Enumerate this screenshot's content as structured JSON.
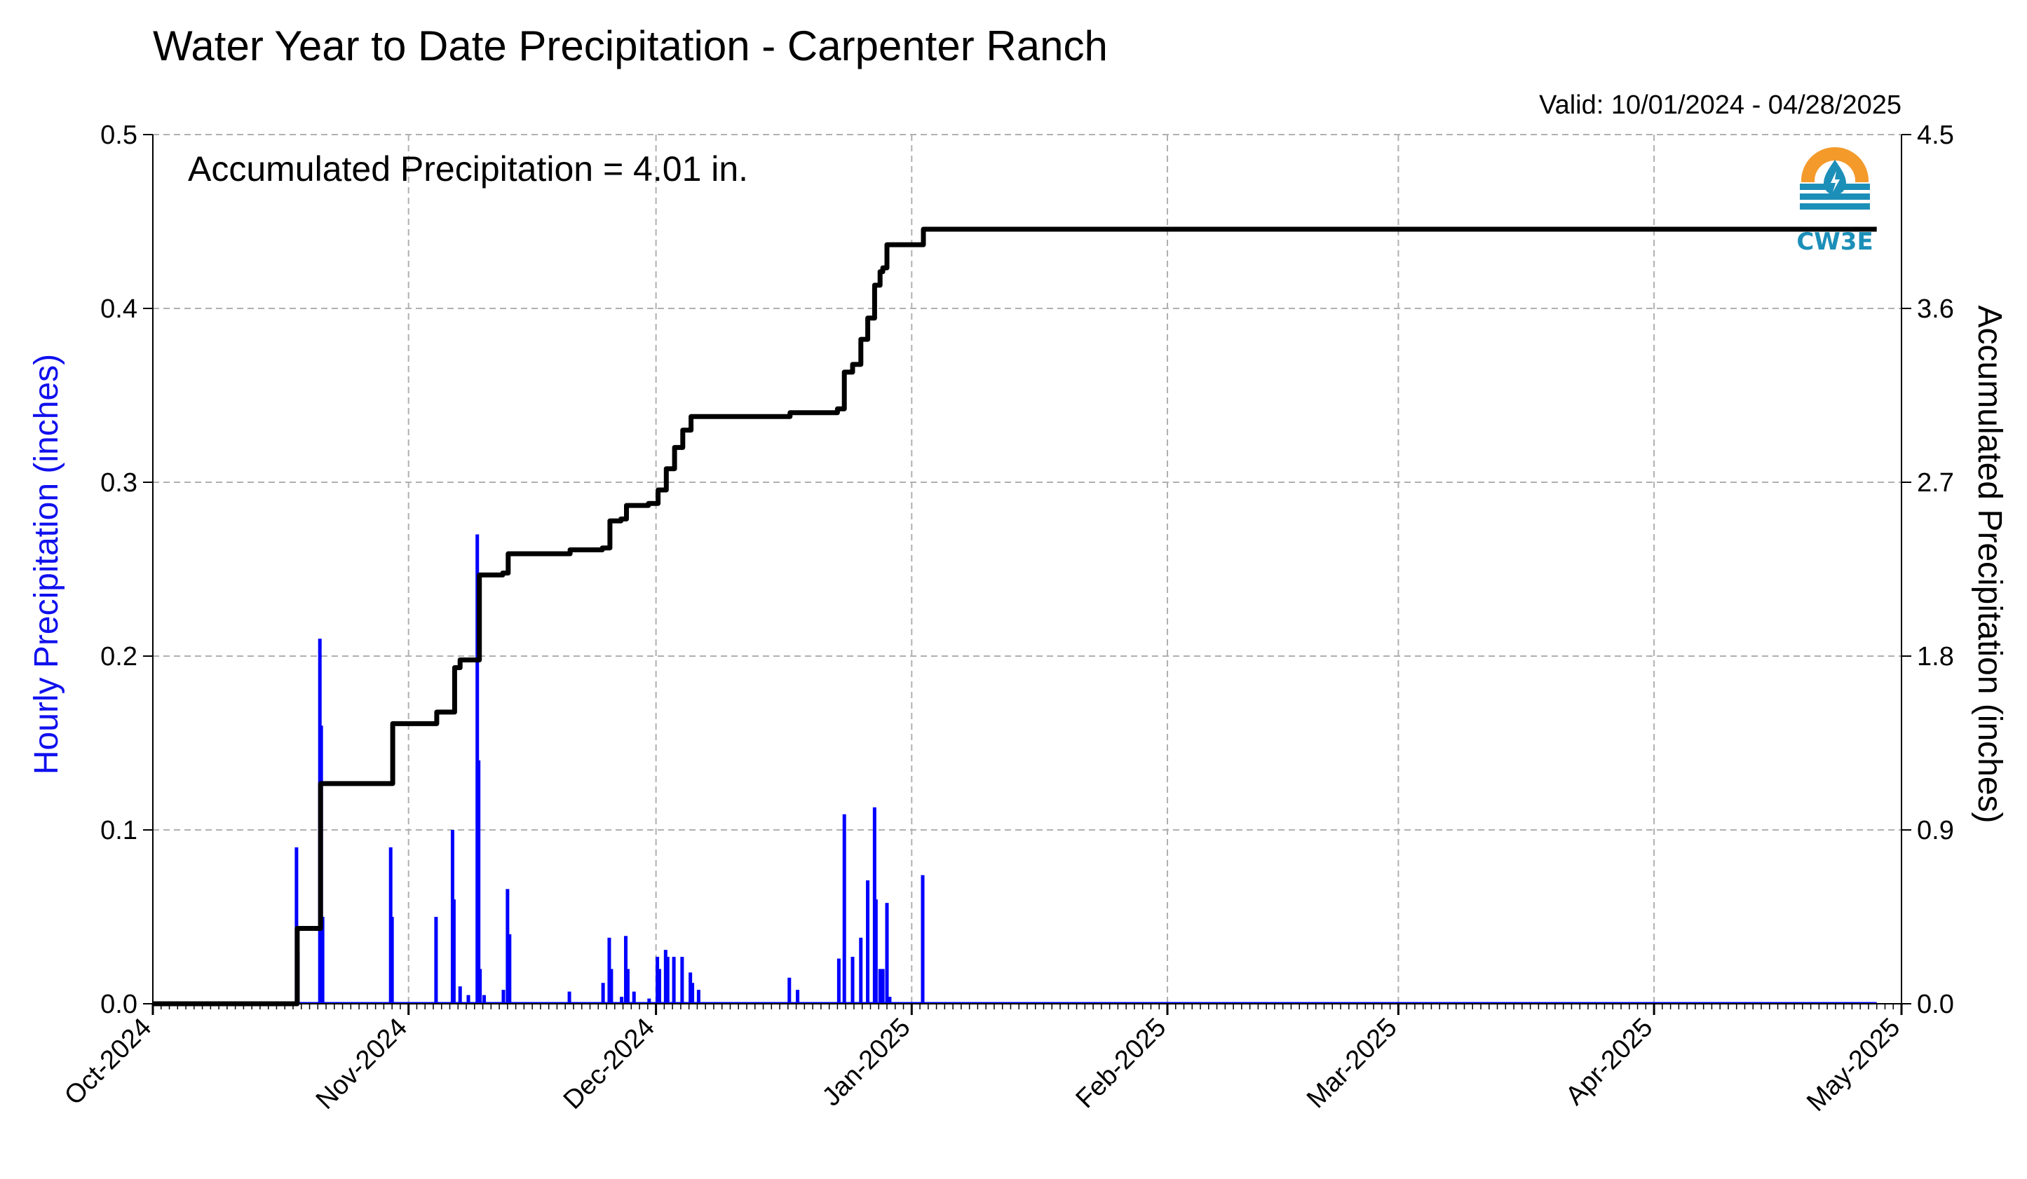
{
  "chart_data": {
    "type": "bar+line",
    "title": "Water Year to Date Precipitation - Carpenter Ranch",
    "valid_text": "Valid: 10/01/2024 - 04/28/2025",
    "annotation": "Accumulated Precipitation = 4.01 in.",
    "ylabel_left": "Hourly Precipitation (inches)",
    "ylabel_right": "Accumulated Precipitation (inches)",
    "ylim_left": [
      0,
      0.5
    ],
    "ylim_right": [
      0,
      4.5
    ],
    "xlim": [
      "2024-10-01",
      "2025-05-01"
    ],
    "yticks_left": [
      "0.0",
      "0.1",
      "0.2",
      "0.3",
      "0.4",
      "0.5"
    ],
    "yticks_left_values": [
      0,
      0.1,
      0.2,
      0.3,
      0.4,
      0.5
    ],
    "yticks_right": [
      "0.0",
      "0.9",
      "1.8",
      "2.7",
      "3.6",
      "4.5"
    ],
    "yticks_right_values": [
      0,
      0.9,
      1.8,
      2.7,
      3.6,
      4.5
    ],
    "xticks": [
      "Oct-2024",
      "Nov-2024",
      "Dec-2024",
      "Jan-2025",
      "Feb-2025",
      "Mar-2025",
      "Apr-2025",
      "May-2025"
    ],
    "xtick_dates": [
      "2024-10-01",
      "2024-11-01",
      "2024-12-01",
      "2025-01-01",
      "2025-02-01",
      "2025-03-01",
      "2025-04-01",
      "2025-05-01"
    ],
    "grid": true,
    "series": [
      {
        "name": "Hourly Precipitation",
        "type": "bar",
        "color": "#0000ff",
        "points": [
          [
            "2024-10-18 10:00",
            0.09
          ],
          [
            "2024-10-18 14:00",
            0.03
          ],
          [
            "2024-10-21 06:00",
            0.21
          ],
          [
            "2024-10-21 10:00",
            0.16
          ],
          [
            "2024-10-21 14:00",
            0.05
          ],
          [
            "2024-10-29 20:00",
            0.09
          ],
          [
            "2024-10-30 00:00",
            0.05
          ],
          [
            "2024-11-04 08:00",
            0.05
          ],
          [
            "2024-11-06 08:00",
            0.1
          ],
          [
            "2024-11-06 12:00",
            0.06
          ],
          [
            "2024-11-07 06:00",
            0.01
          ],
          [
            "2024-11-08 06:00",
            0.005
          ],
          [
            "2024-11-09 08:00",
            0.27
          ],
          [
            "2024-11-09 12:00",
            0.14
          ],
          [
            "2024-11-09 16:00",
            0.02
          ],
          [
            "2024-11-10 04:00",
            0.005
          ],
          [
            "2024-11-12 12:00",
            0.008
          ],
          [
            "2024-11-13 00:00",
            0.066
          ],
          [
            "2024-11-13 06:00",
            0.04
          ],
          [
            "2024-11-20 12:00",
            0.007
          ],
          [
            "2024-11-24 14:00",
            0.012
          ],
          [
            "2024-11-25 08:00",
            0.038
          ],
          [
            "2024-11-25 14:00",
            0.02
          ],
          [
            "2024-11-26 20:00",
            0.004
          ],
          [
            "2024-11-27 08:00",
            0.039
          ],
          [
            "2024-11-27 14:00",
            0.02
          ],
          [
            "2024-11-28 08:00",
            0.007
          ],
          [
            "2024-11-30 04:00",
            0.003
          ],
          [
            "2024-12-01 04:00",
            0.027
          ],
          [
            "2024-12-01 10:00",
            0.02
          ],
          [
            "2024-12-02 04:00",
            0.031
          ],
          [
            "2024-12-02 10:00",
            0.027
          ],
          [
            "2024-12-03 04:00",
            0.027
          ],
          [
            "2024-12-04 04:00",
            0.027
          ],
          [
            "2024-12-05 04:00",
            0.018
          ],
          [
            "2024-12-05 10:00",
            0.012
          ],
          [
            "2024-12-06 04:00",
            0.008
          ],
          [
            "2024-12-17 04:00",
            0.015
          ],
          [
            "2024-12-18 04:00",
            0.008
          ],
          [
            "2024-12-23 04:00",
            0.026
          ],
          [
            "2024-12-23 20:00",
            0.109
          ],
          [
            "2024-12-24 20:00",
            0.027
          ],
          [
            "2024-12-25 20:00",
            0.038
          ],
          [
            "2024-12-26 16:00",
            0.071
          ],
          [
            "2024-12-27 12:00",
            0.113
          ],
          [
            "2024-12-27 16:00",
            0.06
          ],
          [
            "2024-12-28 04:00",
            0.02
          ],
          [
            "2024-12-28 12:00",
            0.02
          ],
          [
            "2024-12-29 00:00",
            0.058
          ],
          [
            "2024-12-29 08:00",
            0.004
          ],
          [
            "2025-01-02 08:00",
            0.074
          ]
        ]
      },
      {
        "name": "Accumulated Precipitation",
        "type": "line",
        "color": "#000000",
        "points": [
          [
            "2024-10-01 00:00",
            0.0
          ],
          [
            "2024-10-18 08:00",
            0.0
          ],
          [
            "2024-10-18 12:00",
            0.39
          ],
          [
            "2024-10-21 04:00",
            0.39
          ],
          [
            "2024-10-21 08:00",
            1.14
          ],
          [
            "2024-10-29 18:00",
            1.14
          ],
          [
            "2024-10-30 02:00",
            1.45
          ],
          [
            "2024-11-04 06:00",
            1.45
          ],
          [
            "2024-11-04 10:00",
            1.51
          ],
          [
            "2024-11-06 06:00",
            1.51
          ],
          [
            "2024-11-06 14:00",
            1.74
          ],
          [
            "2024-11-07 06:00",
            1.78
          ],
          [
            "2024-11-09 06:00",
            1.78
          ],
          [
            "2024-11-09 14:00",
            2.22
          ],
          [
            "2024-11-12 10:00",
            2.23
          ],
          [
            "2024-11-13 02:00",
            2.33
          ],
          [
            "2024-11-20 06:00",
            2.33
          ],
          [
            "2024-11-20 14:00",
            2.35
          ],
          [
            "2024-11-24 12:00",
            2.36
          ],
          [
            "2024-11-25 10:00",
            2.5
          ],
          [
            "2024-11-26 18:00",
            2.51
          ],
          [
            "2024-11-27 10:00",
            2.58
          ],
          [
            "2024-11-30 02:00",
            2.59
          ],
          [
            "2024-12-01 06:00",
            2.66
          ],
          [
            "2024-12-02 06:00",
            2.77
          ],
          [
            "2024-12-03 06:00",
            2.88
          ],
          [
            "2024-12-04 06:00",
            2.97
          ],
          [
            "2024-12-05 06:00",
            3.04
          ],
          [
            "2024-12-13 00:00",
            3.04
          ],
          [
            "2024-12-17 06:00",
            3.06
          ],
          [
            "2024-12-23 00:00",
            3.08
          ],
          [
            "2024-12-23 20:00",
            3.27
          ],
          [
            "2024-12-24 20:00",
            3.31
          ],
          [
            "2024-12-25 20:00",
            3.44
          ],
          [
            "2024-12-26 16:00",
            3.55
          ],
          [
            "2024-12-27 12:00",
            3.72
          ],
          [
            "2024-12-28 04:00",
            3.79
          ],
          [
            "2024-12-28 12:00",
            3.81
          ],
          [
            "2024-12-29 00:00",
            3.93
          ],
          [
            "2025-01-02 06:00",
            3.93
          ],
          [
            "2025-01-02 10:00",
            4.01
          ],
          [
            "2025-04-28 00:00",
            4.01
          ]
        ]
      }
    ]
  },
  "logo": {
    "text": "CW3E",
    "ring_color": "#f39a2b",
    "water_color": "#1c8fb8",
    "icon": "cw3e-logo-icon"
  },
  "colors": {
    "bar": "#0000ff",
    "line": "#000000",
    "left_label": "#1010ee",
    "grid": "#b0b0b0"
  }
}
